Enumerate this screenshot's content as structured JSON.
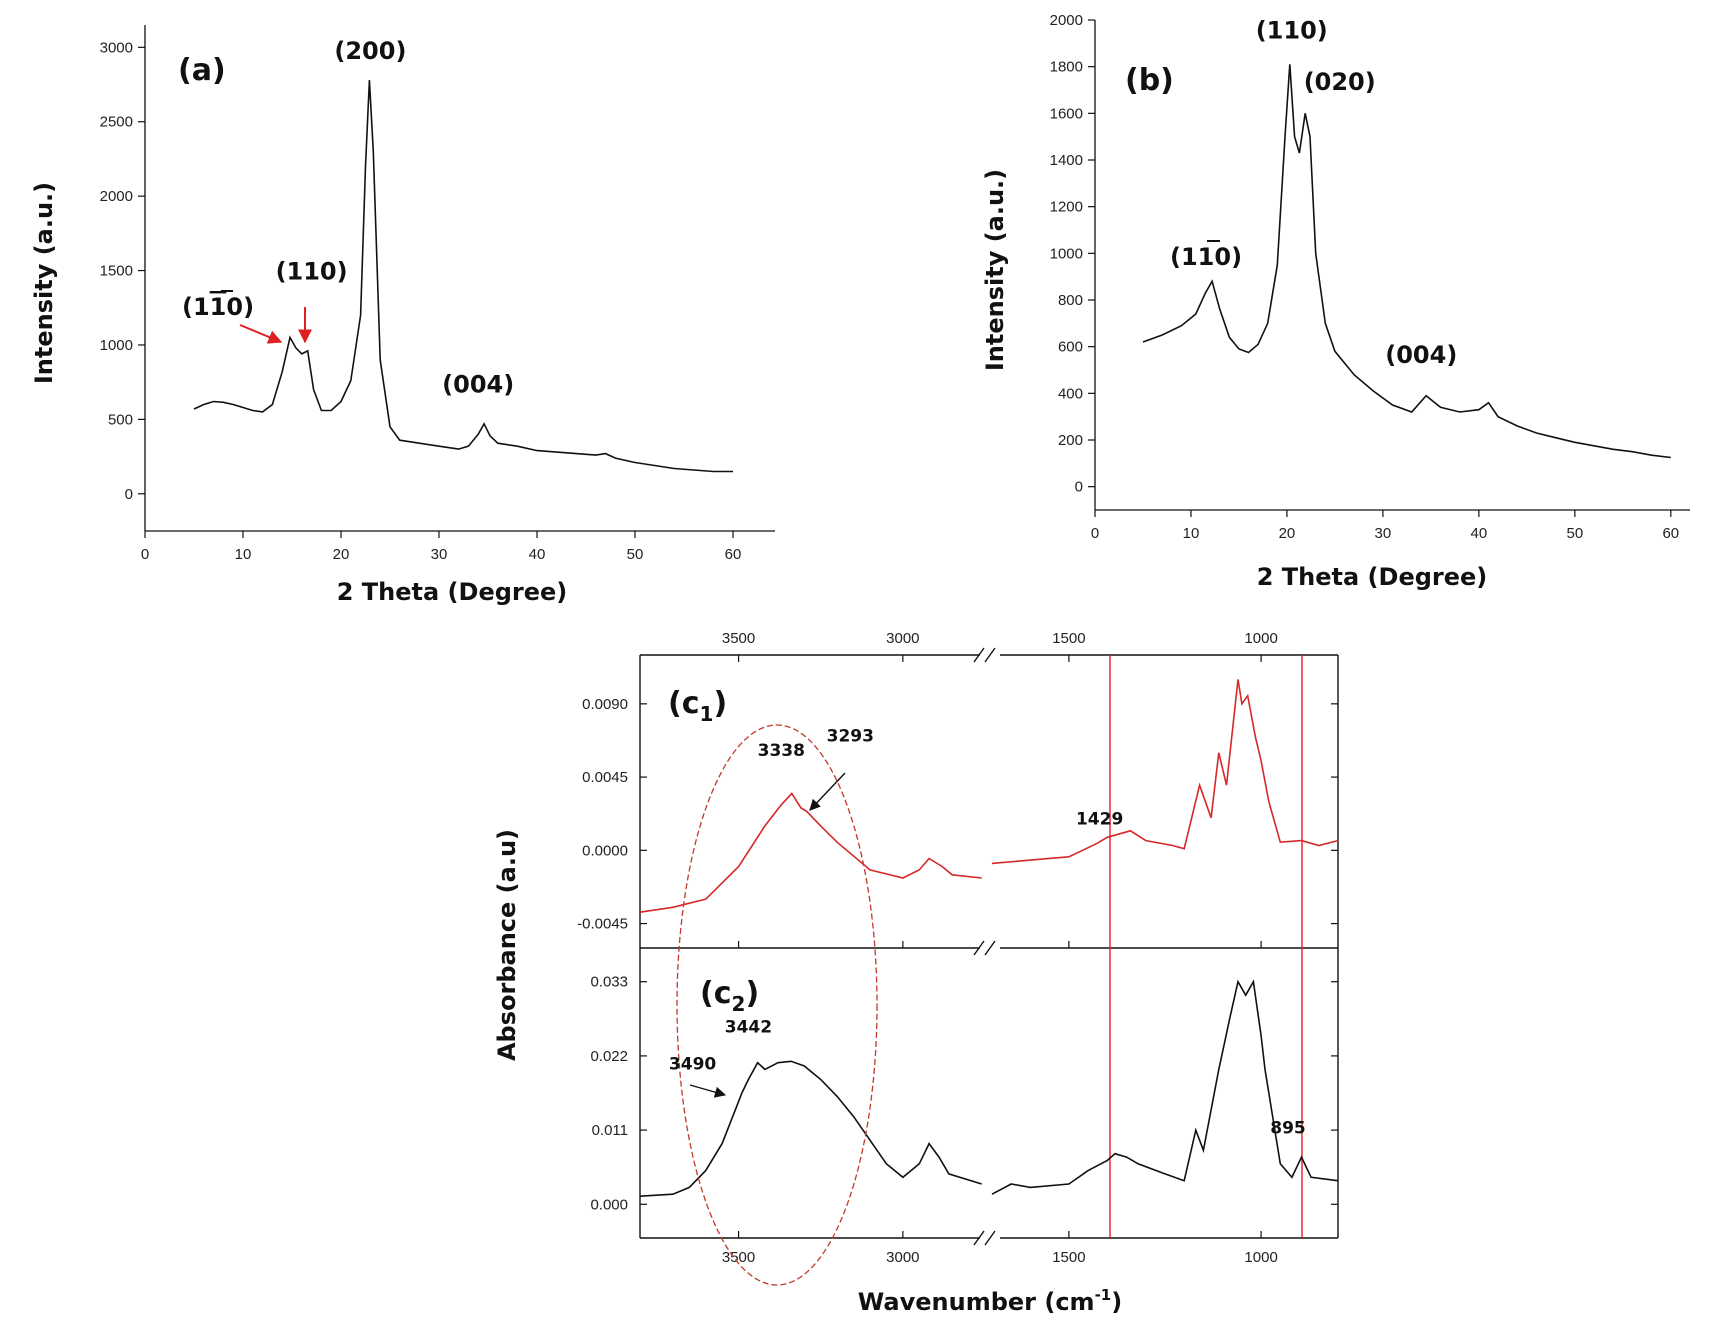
{
  "colors": {
    "black_trace": "#111111",
    "red_trace": "#d62828",
    "annotation_red": "#e02020",
    "ellipse": "#c0392b"
  },
  "chart_data": [
    {
      "id": "a",
      "type": "line",
      "panel_label": "(a)",
      "xlabel": "2 Theta (Degree)",
      "ylabel": "Intensity (a.u.)",
      "xlim": [
        0,
        65
      ],
      "ylim": [
        -250,
        3150
      ],
      "xticks": [
        "0",
        "10",
        "20",
        "30",
        "40",
        "50",
        "60"
      ],
      "yticks": [
        "0",
        "500",
        "1000",
        "1500",
        "2000",
        "2500",
        "3000"
      ],
      "series": [
        {
          "name": "",
          "points": [
            [
              5,
              570
            ],
            [
              6,
              600
            ],
            [
              7,
              620
            ],
            [
              8,
              615
            ],
            [
              9,
              600
            ],
            [
              10,
              580
            ],
            [
              11,
              560
            ],
            [
              12,
              550
            ],
            [
              13,
              600
            ],
            [
              14,
              820
            ],
            [
              14.8,
              1050
            ],
            [
              15.4,
              980
            ],
            [
              16,
              940
            ],
            [
              16.6,
              960
            ],
            [
              17.2,
              700
            ],
            [
              18,
              560
            ],
            [
              19,
              560
            ],
            [
              20,
              620
            ],
            [
              21,
              760
            ],
            [
              22,
              1200
            ],
            [
              22.5,
              2200
            ],
            [
              22.9,
              2780
            ],
            [
              23.3,
              2300
            ],
            [
              24,
              900
            ],
            [
              25,
              450
            ],
            [
              26,
              360
            ],
            [
              28,
              340
            ],
            [
              30,
              320
            ],
            [
              32,
              300
            ],
            [
              33,
              320
            ],
            [
              34,
              400
            ],
            [
              34.6,
              470
            ],
            [
              35.2,
              390
            ],
            [
              36,
              340
            ],
            [
              38,
              320
            ],
            [
              40,
              290
            ],
            [
              42,
              280
            ],
            [
              44,
              270
            ],
            [
              46,
              260
            ],
            [
              47,
              270
            ],
            [
              48,
              240
            ],
            [
              50,
              210
            ],
            [
              52,
              190
            ],
            [
              54,
              170
            ],
            [
              56,
              160
            ],
            [
              58,
              150
            ],
            [
              60,
              150
            ]
          ]
        }
      ],
      "annotations": [
        {
          "text": "(200)",
          "x": 23,
          "y": 2920
        },
        {
          "text": "(110)",
          "x": 17,
          "y": 1440
        },
        {
          "text": "(004)",
          "x": 34,
          "y": 680
        }
      ]
    },
    {
      "id": "b",
      "type": "line",
      "panel_label": "(b)",
      "xlabel": "2 Theta (Degree)",
      "ylabel": "Intensity (a.u.)",
      "xlim": [
        0,
        62
      ],
      "ylim": [
        -100,
        2000
      ],
      "xticks": [
        "0",
        "10",
        "20",
        "30",
        "40",
        "50",
        "60"
      ],
      "yticks": [
        "0",
        "200",
        "400",
        "600",
        "800",
        "1000",
        "1200",
        "1400",
        "1600",
        "1800",
        "2000"
      ],
      "series": [
        {
          "name": "",
          "points": [
            [
              5,
              620
            ],
            [
              7,
              650
            ],
            [
              9,
              690
            ],
            [
              10.5,
              740
            ],
            [
              11.5,
              830
            ],
            [
              12.2,
              880
            ],
            [
              13,
              760
            ],
            [
              14,
              640
            ],
            [
              15,
              590
            ],
            [
              16,
              575
            ],
            [
              17,
              610
            ],
            [
              18,
              700
            ],
            [
              19,
              950
            ],
            [
              19.8,
              1500
            ],
            [
              20.3,
              1810
            ],
            [
              20.8,
              1500
            ],
            [
              21.3,
              1430
            ],
            [
              21.9,
              1600
            ],
            [
              22.4,
              1500
            ],
            [
              23,
              1000
            ],
            [
              24,
              700
            ],
            [
              25,
              580
            ],
            [
              27,
              480
            ],
            [
              29,
              410
            ],
            [
              31,
              350
            ],
            [
              33,
              320
            ],
            [
              34.5,
              390
            ],
            [
              36,
              340
            ],
            [
              38,
              320
            ],
            [
              40,
              330
            ],
            [
              41,
              360
            ],
            [
              42,
              300
            ],
            [
              44,
              260
            ],
            [
              46,
              230
            ],
            [
              48,
              210
            ],
            [
              50,
              190
            ],
            [
              52,
              175
            ],
            [
              54,
              160
            ],
            [
              56,
              150
            ],
            [
              58,
              135
            ],
            [
              60,
              125
            ]
          ]
        }
      ],
      "annotations": [
        {
          "text": "(110)",
          "x": 20.5,
          "y": 1920
        },
        {
          "text": "(020)",
          "x": 25.5,
          "y": 1700
        },
        {
          "text": "(004)",
          "x": 34,
          "y": 530
        }
      ]
    },
    {
      "id": "c1",
      "type": "line",
      "panel_label": "c",
      "panel_sub": "1",
      "xlabel": "",
      "ylabel": "",
      "xlim": [
        3800,
        800
      ],
      "ylim": [
        -0.006,
        0.012
      ],
      "axis_break": [
        2750,
        1700
      ],
      "xticks_top": [
        "3500",
        "3000",
        "1500",
        "1000"
      ],
      "yticks": [
        "-0.0045",
        "0.0000",
        "0.0045",
        "0.0090"
      ],
      "series": [
        {
          "name": "",
          "points": [
            [
              3800,
              -0.0038
            ],
            [
              3700,
              -0.0035
            ],
            [
              3600,
              -0.003
            ],
            [
              3500,
              -0.001
            ],
            [
              3420,
              0.0015
            ],
            [
              3370,
              0.0028
            ],
            [
              3338,
              0.0035
            ],
            [
              3310,
              0.0026
            ],
            [
              3293,
              0.0024
            ],
            [
              3250,
              0.0015
            ],
            [
              3200,
              0.0005
            ],
            [
              3100,
              -0.0012
            ],
            [
              3000,
              -0.0017
            ],
            [
              2950,
              -0.0012
            ],
            [
              2920,
              -0.0005
            ],
            [
              2880,
              -0.001
            ],
            [
              2850,
              -0.0015
            ],
            [
              2760,
              -0.0017
            ],
            [
              1700,
              -0.0008
            ],
            [
              1600,
              -0.0006
            ],
            [
              1500,
              -0.0004
            ],
            [
              1429,
              0.0004
            ],
            [
              1400,
              0.0008
            ],
            [
              1340,
              0.0012
            ],
            [
              1300,
              0.0006
            ],
            [
              1230,
              0.0003
            ],
            [
              1200,
              0.0001
            ],
            [
              1160,
              0.004
            ],
            [
              1130,
              0.002
            ],
            [
              1110,
              0.006
            ],
            [
              1090,
              0.004
            ],
            [
              1060,
              0.0105
            ],
            [
              1050,
              0.009
            ],
            [
              1035,
              0.0095
            ],
            [
              1015,
              0.007
            ],
            [
              1000,
              0.0055
            ],
            [
              980,
              0.003
            ],
            [
              950,
              0.0005
            ],
            [
              895,
              0.0006
            ],
            [
              850,
              0.0003
            ],
            [
              800,
              0.0006
            ]
          ]
        }
      ],
      "annotations": [
        {
          "text": "3338",
          "x": 3370,
          "y": 0.0058
        },
        {
          "text": "3293",
          "x": 3160,
          "y": 0.0067
        },
        {
          "text": "1429",
          "x": 1420,
          "y": 0.0016
        }
      ]
    },
    {
      "id": "c2",
      "type": "line",
      "panel_label": "c",
      "panel_sub": "2",
      "xlabel": "Wavenumber (cm⁻¹)",
      "ylabel": "Absorbance (a.u)",
      "xlim": [
        3800,
        800
      ],
      "ylim": [
        -0.005,
        0.038
      ],
      "axis_break": [
        2750,
        1700
      ],
      "xticks": [
        "3500",
        "3000",
        "1500",
        "1000"
      ],
      "yticks": [
        "0.000",
        "0.011",
        "0.022",
        "0.033"
      ],
      "series": [
        {
          "name": "",
          "points": [
            [
              3800,
              0.0012
            ],
            [
              3700,
              0.0015
            ],
            [
              3650,
              0.0025
            ],
            [
              3600,
              0.005
            ],
            [
              3550,
              0.009
            ],
            [
              3510,
              0.014
            ],
            [
              3490,
              0.0165
            ],
            [
              3470,
              0.0185
            ],
            [
              3442,
              0.021
            ],
            [
              3420,
              0.02
            ],
            [
              3380,
              0.021
            ],
            [
              3340,
              0.0212
            ],
            [
              3300,
              0.0205
            ],
            [
              3250,
              0.0185
            ],
            [
              3200,
              0.016
            ],
            [
              3150,
              0.013
            ],
            [
              3100,
              0.0095
            ],
            [
              3050,
              0.006
            ],
            [
              3000,
              0.004
            ],
            [
              2950,
              0.006
            ],
            [
              2920,
              0.009
            ],
            [
              2890,
              0.007
            ],
            [
              2860,
              0.0045
            ],
            [
              2760,
              0.003
            ],
            [
              1700,
              0.0015
            ],
            [
              1650,
              0.003
            ],
            [
              1600,
              0.0025
            ],
            [
              1500,
              0.003
            ],
            [
              1450,
              0.005
            ],
            [
              1400,
              0.0065
            ],
            [
              1380,
              0.0075
            ],
            [
              1350,
              0.007
            ],
            [
              1320,
              0.006
            ],
            [
              1250,
              0.0045
            ],
            [
              1200,
              0.0035
            ],
            [
              1170,
              0.011
            ],
            [
              1150,
              0.008
            ],
            [
              1110,
              0.02
            ],
            [
              1080,
              0.028
            ],
            [
              1060,
              0.033
            ],
            [
              1040,
              0.031
            ],
            [
              1020,
              0.033
            ],
            [
              1000,
              0.025
            ],
            [
              990,
              0.02
            ],
            [
              950,
              0.006
            ],
            [
              920,
              0.004
            ],
            [
              895,
              0.007
            ],
            [
              870,
              0.004
            ],
            [
              800,
              0.0035
            ]
          ]
        }
      ],
      "annotations": [
        {
          "text": "3442",
          "x": 3470,
          "y": 0.0255
        },
        {
          "text": "3490",
          "x": 3640,
          "y": 0.02
        },
        {
          "text": "895",
          "x": 930,
          "y": 0.0105
        }
      ]
    }
  ]
}
